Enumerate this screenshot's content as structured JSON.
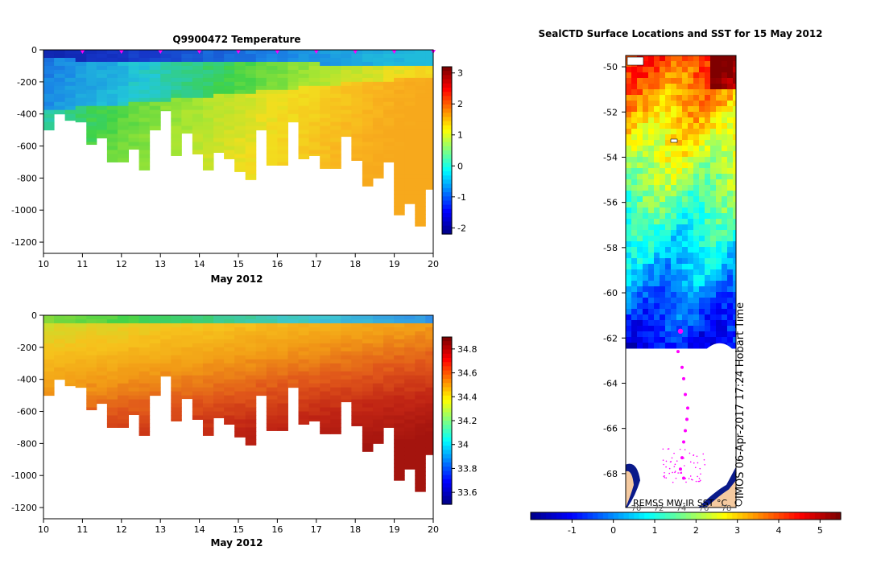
{
  "colors": {
    "jet": [
      "#00008f",
      "#0000ff",
      "#0080ff",
      "#00ffff",
      "#80ff80",
      "#ffff00",
      "#ff8000",
      "#ff0000",
      "#800000"
    ],
    "temp_profile": [
      "#0a1a9e",
      "#1636c8",
      "#1a86e6",
      "#22c8d8",
      "#3ed24a",
      "#a8e632",
      "#f2de1e",
      "#f9b41e",
      "#f49a1a"
    ],
    "salt_profile": [
      "#2a7ef0",
      "#3ec6d2",
      "#3ed24a",
      "#c6e02c",
      "#f6c21c",
      "#f29a16",
      "#e0561a",
      "#c02414",
      "#a4140e"
    ],
    "land": "#f5caa0",
    "track": "#ff00ff",
    "ice": "#ffffff"
  },
  "chart_data": [
    {
      "type": "heatmap",
      "name": "temperature-section",
      "title": "Q9900472  Temperature",
      "xlabel": "May 2012",
      "ylabel": "",
      "xlim": [
        10,
        20
      ],
      "ylim": [
        -1270,
        0
      ],
      "xticks": [
        "10",
        "11",
        "12",
        "13",
        "14",
        "15",
        "16",
        "17",
        "18",
        "19",
        "20"
      ],
      "yticks": [
        "0",
        "-200",
        "-400",
        "-600",
        "-800",
        "-1000",
        "-1200"
      ],
      "colorbar": {
        "ticks": [
          "3",
          "2",
          "1",
          "0",
          "-1",
          "-2"
        ],
        "range": [
          -2.2,
          3.2
        ]
      },
      "profile_days": [
        10,
        10.27,
        10.55,
        10.82,
        11.1,
        11.36,
        11.63,
        11.9,
        12.18,
        12.45,
        12.72,
        13.0,
        13.27,
        13.54,
        13.82,
        14.09,
        14.36,
        14.63,
        14.9,
        15.18,
        15.45,
        15.72,
        16.0,
        16.27,
        16.54,
        16.81,
        17.09,
        17.36,
        17.63,
        17.9,
        18.18,
        18.45,
        18.72,
        18.99,
        19.26,
        19.53,
        19.8,
        20.05
      ],
      "max_depth": [
        500,
        400,
        440,
        450,
        590,
        550,
        700,
        700,
        620,
        750,
        500,
        380,
        660,
        520,
        650,
        750,
        640,
        680,
        760,
        810,
        500,
        720,
        720,
        450,
        680,
        660,
        740,
        740,
        540,
        690,
        850,
        800,
        700,
        1030,
        960,
        1100,
        870,
        870
      ],
      "surface_markers": [
        11,
        12,
        13,
        14,
        15,
        16,
        17,
        18,
        19,
        20
      ]
    },
    {
      "type": "heatmap",
      "name": "salinity-section",
      "title": "",
      "xlabel": "May 2012",
      "ylabel": "",
      "xlim": [
        10,
        20
      ],
      "ylim": [
        -1270,
        0
      ],
      "xticks": [
        "10",
        "11",
        "12",
        "13",
        "14",
        "15",
        "16",
        "17",
        "18",
        "19",
        "20"
      ],
      "yticks": [
        "0",
        "-200",
        "-400",
        "-600",
        "-800",
        "-1000",
        "-1200"
      ],
      "colorbar": {
        "ticks": [
          "34.8",
          "34.6",
          "34.4",
          "34.2",
          "34",
          "33.8",
          "33.6"
        ],
        "range": [
          33.5,
          34.9
        ]
      }
    },
    {
      "type": "heatmap",
      "name": "sst-map",
      "title": "SealCTD Surface Locations and SST for 15 May 2012",
      "ylabel": "",
      "ylim": [
        -69.5,
        -49.5
      ],
      "yticks": [
        "-50",
        "-52",
        "-54",
        "-56",
        "-58",
        "-60",
        "-62",
        "-64",
        "-66",
        "-68"
      ],
      "colorbar": {
        "ticks": [
          "-1",
          "0",
          "1",
          "2",
          "3",
          "4",
          "5"
        ],
        "range": [
          -2,
          5.5
        ]
      },
      "colorbar_alt_ticks": [
        "70",
        "72",
        "74",
        "76",
        "78"
      ],
      "source_label": "REMSS MW-IR SST °C",
      "watermark": "IMOS 06-Apr-2017 17:24 Hobart Time"
    }
  ]
}
